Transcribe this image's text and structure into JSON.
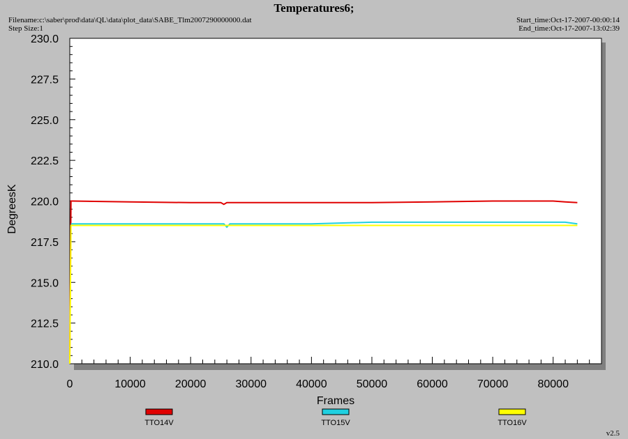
{
  "header": {
    "title": "Temperatures6;",
    "filename_label": "Filename:",
    "filename": "c:\\saber\\prod\\data\\QL\\data\\plot_data\\SABE_Tlm2007290000000.dat",
    "step_label": "Step Size:",
    "step_size": "1",
    "start_label": "Start_time:",
    "start_time": "Oct-17-2007-00:00:14",
    "end_label": "End_time:",
    "end_time": "Oct-17-2007-13:02:39"
  },
  "footer": {
    "version": "v2.5"
  },
  "colors": {
    "background": "#c0c0c0",
    "plot_area": "#ffffff",
    "TTO14V": "#e00000",
    "TTO15V": "#20d0e0",
    "TTO16V": "#ffff00"
  },
  "chart_data": {
    "type": "line",
    "title": "Temperatures6;",
    "xlabel": "Frames",
    "ylabel": "DegreesK",
    "xlim": [
      0,
      88000
    ],
    "ylim": [
      210.0,
      230.0
    ],
    "x_ticks": [
      "0",
      "10000",
      "20000",
      "30000",
      "40000",
      "50000",
      "60000",
      "70000",
      "80000"
    ],
    "y_ticks": [
      "210.0",
      "212.5",
      "215.0",
      "217.5",
      "220.0",
      "222.5",
      "225.0",
      "227.5",
      "230.0"
    ],
    "grid": false,
    "legend_position": "bottom",
    "series": [
      {
        "name": "TTO14V",
        "color": "#e00000",
        "x": [
          0,
          200,
          400,
          10000,
          20000,
          25000,
          25500,
          26000,
          30000,
          40000,
          50000,
          60000,
          70000,
          80000,
          82000,
          84000
        ],
        "y": [
          210.3,
          220.0,
          220.0,
          219.95,
          219.9,
          219.9,
          219.8,
          219.9,
          219.9,
          219.9,
          219.9,
          219.95,
          220.0,
          220.0,
          219.95,
          219.9
        ]
      },
      {
        "name": "TTO15V",
        "color": "#20d0e0",
        "x": [
          200,
          400,
          10000,
          20000,
          25500,
          26000,
          26500,
          30000,
          40000,
          50000,
          60000,
          70000,
          80000,
          82000,
          84000
        ],
        "y": [
          218.6,
          218.6,
          218.6,
          218.6,
          218.6,
          218.4,
          218.6,
          218.6,
          218.6,
          218.7,
          218.7,
          218.7,
          218.7,
          218.7,
          218.6
        ]
      },
      {
        "name": "TTO16V",
        "color": "#ffff00",
        "x": [
          0,
          200,
          400,
          10000,
          20000,
          30000,
          40000,
          50000,
          60000,
          70000,
          80000,
          84000
        ],
        "y": [
          210.0,
          218.5,
          218.5,
          218.5,
          218.5,
          218.5,
          218.5,
          218.5,
          218.5,
          218.5,
          218.5,
          218.5
        ]
      }
    ]
  }
}
